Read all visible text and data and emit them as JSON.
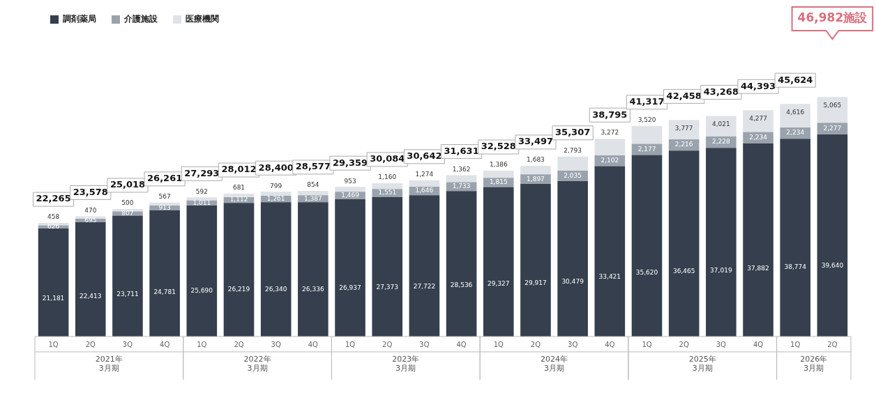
{
  "chart_data": {
    "type": "bar",
    "stacked": true,
    "legend": "top left",
    "tick_labels": "x",
    "grid": false,
    "categories": [
      "1Q",
      "2Q",
      "3Q",
      "4Q",
      "1Q",
      "2Q",
      "3Q",
      "4Q",
      "1Q",
      "2Q",
      "3Q",
      "4Q",
      "1Q",
      "2Q",
      "3Q",
      "4Q",
      "1Q",
      "2Q",
      "3Q",
      "4Q",
      "1Q",
      "2Q"
    ],
    "series": [
      {
        "name": "調剤薬局",
        "color": "#353f4d",
        "values": [
          21181,
          22413,
          23711,
          24781,
          25690,
          26219,
          26340,
          26336,
          26937,
          27373,
          27722,
          28536,
          29327,
          29917,
          30479,
          33421,
          35620,
          36465,
          37019,
          37882,
          38774,
          39640
        ],
        "value_labels": [
          "21,181",
          "22,413",
          "23,711",
          "24,781",
          "25,690",
          "26,219",
          "26,340",
          "26,336",
          "26,937",
          "27,373",
          "27,722",
          "28,536",
          "29,327",
          "29,917",
          "30,479",
          "33,421",
          "35,620",
          "36,465",
          "37,019",
          "37,882",
          "38,774",
          "39,640"
        ]
      },
      {
        "name": "介護施設",
        "color": "#9aa3ad",
        "values": [
          626,
          695,
          807,
          913,
          1011,
          1112,
          1261,
          1387,
          1469,
          1551,
          1646,
          1733,
          1815,
          1897,
          2035,
          2102,
          2177,
          2216,
          2228,
          2234,
          2234,
          2277
        ],
        "value_labels": [
          "626",
          "695",
          "807",
          "913",
          "1,011",
          "1,112",
          "1,261",
          "1,387",
          "1,469",
          "1,551",
          "1,646",
          "1,733",
          "1,815",
          "1,897",
          "2,035",
          "2,102",
          "2,177",
          "2,216",
          "2,228",
          "2,234",
          "2,234",
          "2,277"
        ]
      },
      {
        "name": "医療機関",
        "color": "#dfe2e6",
        "values": [
          458,
          470,
          500,
          567,
          592,
          681,
          799,
          854,
          953,
          1160,
          1274,
          1362,
          1386,
          1683,
          2793,
          3272,
          3520,
          3777,
          4021,
          4277,
          4616,
          5065
        ],
        "value_labels": [
          "458",
          "470",
          "500",
          "567",
          "592",
          "681",
          "799",
          "854",
          "953",
          "1,160",
          "1,274",
          "1,362",
          "1,386",
          "1,683",
          "2,793",
          "3,272",
          "3,520",
          "3,777",
          "4,021",
          "4,277",
          "4,616",
          "5,065"
        ]
      }
    ],
    "totals": [
      "22,265",
      "23,578",
      "25,018",
      "26,261",
      "27,293",
      "28,012",
      "28,400",
      "28,577",
      "29,359",
      "30,084",
      "30,642",
      "31,631",
      "32,528",
      "33,497",
      "35,307",
      "38,795",
      "41,317",
      "42,458",
      "43,268",
      "44,393",
      "45,624",
      null
    ],
    "annotations": [
      "46,982施設",
      "2021年\n3月期",
      "2022年\n3月期",
      "2023年\n3月期",
      "2024年\n3月期",
      "2025年\n3月期",
      "2026年\n3月期"
    ]
  }
}
